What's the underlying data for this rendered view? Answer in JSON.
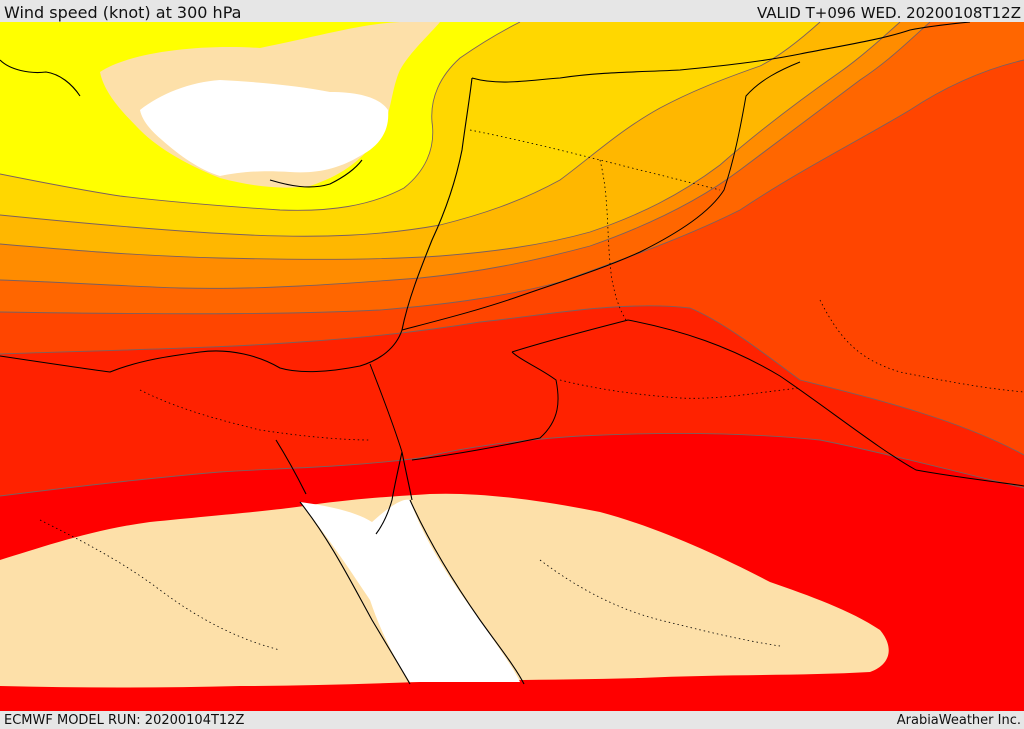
{
  "header": {
    "title": "Wind speed (knot) at 300 hPa",
    "valid": "VALID T+096 WED. 20200108T12Z"
  },
  "footer": {
    "model_run": "ECMWF MODEL RUN: 20200104T12Z",
    "credit": "ArabiaWeather Inc."
  },
  "colors": {
    "frame": "#e6e6e6",
    "below_band": "#ffffff",
    "band_1": "#fde0a9",
    "band_2": "#ffff00",
    "band_3": "#ffd700",
    "band_4": "#ffb700",
    "band_5": "#ff8c00",
    "band_6": "#ff6600",
    "band_7": "#ff4500",
    "band_8": "#ff2200",
    "band_9": "#ff0000",
    "coastline": "#000000",
    "contour": "#7a6060"
  }
}
